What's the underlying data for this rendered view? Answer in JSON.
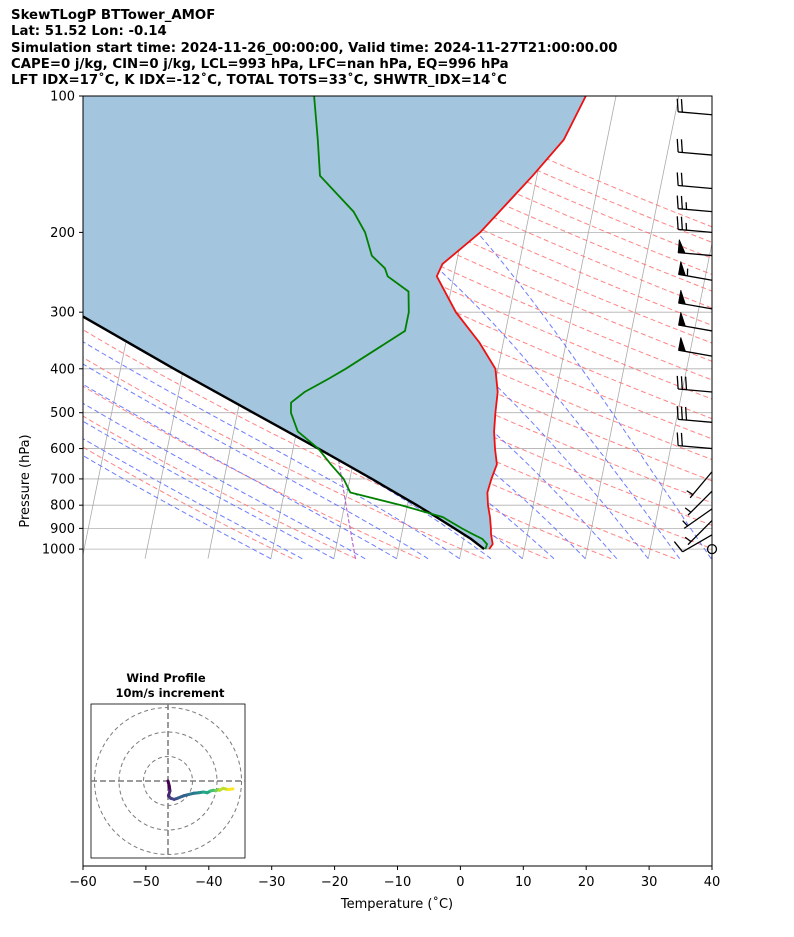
{
  "header": {
    "line1": "SkewTLogP BTTower_AMOF",
    "line2": "Lat: 51.52   Lon: -0.14",
    "line3": "Simulation start time: 2024-11-26_00:00:00, Valid time: 2024-11-27T21:00:00.00",
    "line4": "CAPE=0 j/kg, CIN=0 j/kg, LCL=993 hPa, LFC=nan hPa, EQ=996 hPa",
    "line5": "LFT IDX=17˚C, K IDX=-12˚C, TOTAL TOTS=33˚C, SHWTR_IDX=14˚C"
  },
  "chart_data": {
    "type": "skewt",
    "xlabel": "Temperature (˚C)",
    "ylabel": "Pressure (hPa)",
    "xlim": [
      -60,
      40
    ],
    "ylim": [
      1050,
      100
    ],
    "x_ticks": [
      "−60",
      "−50",
      "−40",
      "−30",
      "−20",
      "−10",
      "0",
      "10",
      "20",
      "30",
      "40"
    ],
    "y_ticks": [
      "100",
      "200",
      "300",
      "400",
      "500",
      "600",
      "700",
      "800",
      "900",
      "1000"
    ],
    "grid": true,
    "colors": {
      "temperature": "#ee1111",
      "dewpoint": "#008000",
      "parcel": "#000000",
      "cape_fill": "#a3c5de",
      "dry_adiabat": "#ff6666",
      "moist_adiabat": "#5566ff",
      "isotherm": "#aaaaaa",
      "mixing_ratio": "#b050c8"
    },
    "temperature": [
      [
        1000,
        4.4
      ],
      [
        975,
        4.8
      ],
      [
        950,
        4.5
      ],
      [
        925,
        4.2
      ],
      [
        900,
        4.0
      ],
      [
        850,
        3.5
      ],
      [
        800,
        2.8
      ],
      [
        750,
        2.3
      ],
      [
        700,
        2.5
      ],
      [
        650,
        2.9
      ],
      [
        600,
        2.1
      ],
      [
        550,
        1.4
      ],
      [
        500,
        1.0
      ],
      [
        450,
        0.7
      ],
      [
        400,
        -0.4
      ],
      [
        350,
        -3.8
      ],
      [
        300,
        -8.5
      ],
      [
        250,
        -12.7
      ],
      [
        235,
        -12.2
      ],
      [
        200,
        -7.2
      ],
      [
        150,
        -0.7
      ],
      [
        125,
        3.1
      ],
      [
        100,
        5.2
      ]
    ],
    "dewpoint": [
      [
        1000,
        3.8
      ],
      [
        975,
        3.9
      ],
      [
        950,
        3.0
      ],
      [
        925,
        1.2
      ],
      [
        900,
        -0.6
      ],
      [
        850,
        -4.0
      ],
      [
        800,
        -11.0
      ],
      [
        750,
        -19.5
      ],
      [
        700,
        -21.0
      ],
      [
        650,
        -23.5
      ],
      [
        600,
        -26.0
      ],
      [
        550,
        -29.8
      ],
      [
        500,
        -31.5
      ],
      [
        475,
        -31.8
      ],
      [
        450,
        -30.0
      ],
      [
        420,
        -26.5
      ],
      [
        400,
        -24.2
      ],
      [
        350,
        -18.5
      ],
      [
        330,
        -16.0
      ],
      [
        300,
        -16.0
      ],
      [
        270,
        -16.7
      ],
      [
        250,
        -20.5
      ],
      [
        240,
        -21.2
      ],
      [
        225,
        -23.7
      ],
      [
        200,
        -25.5
      ],
      [
        180,
        -28.0
      ],
      [
        150,
        -34.5
      ],
      [
        125,
        -36.0
      ],
      [
        100,
        -38.0
      ]
    ],
    "parcel": [
      [
        1000,
        3.6
      ],
      [
        950,
        1.2
      ],
      [
        900,
        -1.8
      ],
      [
        850,
        -5.0
      ],
      [
        800,
        -8.5
      ],
      [
        700,
        -16.5
      ],
      [
        600,
        -26.0
      ],
      [
        500,
        -37.5
      ],
      [
        400,
        -51.5
      ],
      [
        300,
        -69.0
      ],
      [
        250,
        -80.0
      ],
      [
        200,
        -91.5
      ],
      [
        150,
        -106.0
      ],
      [
        100,
        -126.0
      ]
    ],
    "wind_barbs": [
      {
        "p": 110,
        "speed": 20,
        "dir": 275
      },
      {
        "p": 135,
        "speed": 20,
        "dir": 275
      },
      {
        "p": 160,
        "speed": 20,
        "dir": 275
      },
      {
        "p": 180,
        "speed": 25,
        "dir": 275
      },
      {
        "p": 200,
        "speed": 25,
        "dir": 275
      },
      {
        "p": 225,
        "speed": 50,
        "dir": 275
      },
      {
        "p": 255,
        "speed": 55,
        "dir": 280
      },
      {
        "p": 295,
        "speed": 50,
        "dir": 280
      },
      {
        "p": 330,
        "speed": 50,
        "dir": 280
      },
      {
        "p": 375,
        "speed": 50,
        "dir": 280
      },
      {
        "p": 450,
        "speed": 30,
        "dir": 275
      },
      {
        "p": 525,
        "speed": 30,
        "dir": 275
      },
      {
        "p": 600,
        "speed": 20,
        "dir": 275
      },
      {
        "p": 675,
        "speed": 5,
        "dir": 220
      },
      {
        "p": 745,
        "speed": 5,
        "dir": 225
      },
      {
        "p": 815,
        "speed": 5,
        "dir": 235
      },
      {
        "p": 865,
        "speed": 5,
        "dir": 225
      },
      {
        "p": 930,
        "speed": 10,
        "dir": 240
      },
      {
        "p": 1000,
        "speed": 0,
        "dir": 0
      }
    ],
    "hodograph": {
      "title_line1": "Wind Profile",
      "title_line2": "10m/s increment",
      "ring_increment_ms": 10,
      "trace_uv": [
        [
          0,
          0
        ],
        [
          0.5,
          -2
        ],
        [
          0.8,
          -4
        ],
        [
          0.2,
          -6
        ],
        [
          1.0,
          -7
        ],
        [
          2.5,
          -7.5
        ],
        [
          4.0,
          -7.0
        ],
        [
          6.5,
          -6.0
        ],
        [
          8.5,
          -5.5
        ],
        [
          10.5,
          -5.0
        ],
        [
          12.5,
          -4.8
        ],
        [
          14.5,
          -4.5
        ],
        [
          16.0,
          -4.8
        ],
        [
          17.5,
          -4.0
        ],
        [
          18.5,
          -3.8
        ],
        [
          19.5,
          -4.0
        ],
        [
          20.5,
          -3.5
        ],
        [
          21.0,
          -3.8
        ],
        [
          22.5,
          -3.0
        ],
        [
          24.5,
          -3.5
        ],
        [
          26.5,
          -3.2
        ]
      ]
    }
  }
}
